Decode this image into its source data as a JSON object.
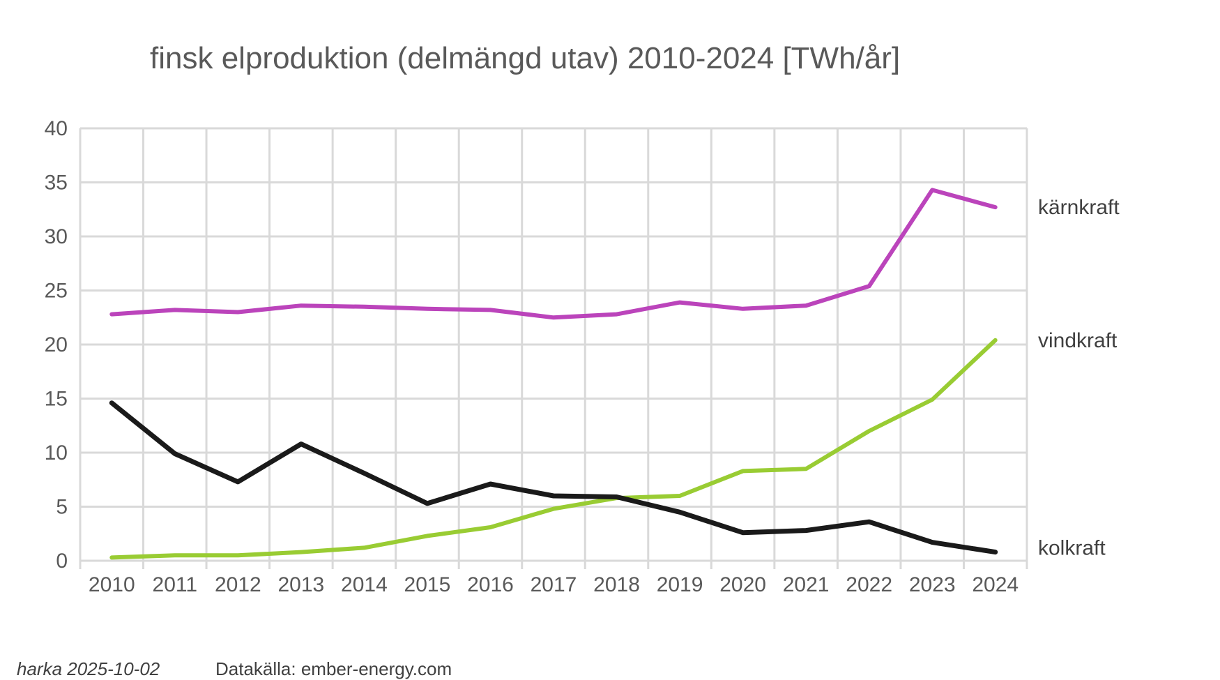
{
  "chart_data": {
    "type": "line",
    "title": "finsk elproduktion (delmängd utav) 2010-2024 [TWh/år]",
    "xlabel": "",
    "ylabel": "",
    "x": [
      "2010",
      "2011",
      "2012",
      "2013",
      "2014",
      "2015",
      "2016",
      "2017",
      "2018",
      "2019",
      "2020",
      "2021",
      "2022",
      "2023",
      "2024"
    ],
    "ylim": [
      0,
      40
    ],
    "yticks": [
      "0",
      "5",
      "10",
      "15",
      "20",
      "25",
      "30",
      "35",
      "40"
    ],
    "ytick_values": [
      0,
      5,
      10,
      15,
      20,
      25,
      30,
      35,
      40
    ],
    "grid": true,
    "legend": "inline-right",
    "series": [
      {
        "name": "kärnkraft",
        "color": "#BB44BB",
        "values": [
          22.8,
          23.2,
          23.0,
          23.6,
          23.5,
          23.3,
          23.2,
          22.5,
          22.8,
          23.9,
          23.3,
          23.6,
          25.4,
          34.3,
          32.7
        ]
      },
      {
        "name": "vindkraft",
        "color": "#99CC33",
        "values": [
          0.3,
          0.5,
          0.5,
          0.8,
          1.2,
          2.3,
          3.1,
          4.8,
          5.8,
          6.0,
          8.3,
          8.5,
          12.0,
          14.9,
          20.4
        ]
      },
      {
        "name": "kolkraft",
        "color": "#1A1A1A",
        "values": [
          14.6,
          9.9,
          7.3,
          10.8,
          8.1,
          5.3,
          7.1,
          6.0,
          5.9,
          4.5,
          2.6,
          2.8,
          3.6,
          1.7,
          0.8
        ]
      }
    ]
  },
  "footer": {
    "author_date": "harka 2025-10-02",
    "source": "Datakälla: ember-energy.com"
  }
}
